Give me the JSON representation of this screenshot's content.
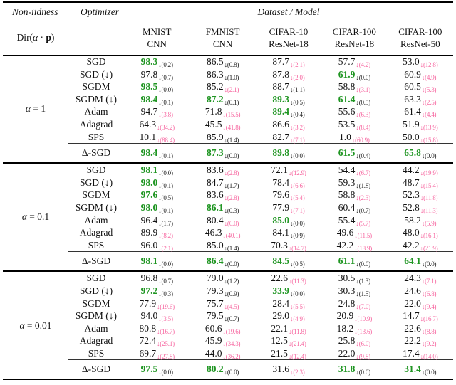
{
  "header": {
    "non_iidness": "Non-iidness",
    "optimizer": "Optimizer",
    "dataset_model": "Dataset / Model",
    "dir": {
      "prefix": "Dir(",
      "alpha": "α",
      "dot": " · ",
      "p": "p",
      "suffix": ")"
    },
    "columns": [
      {
        "line1": "MNIST",
        "line2": "CNN"
      },
      {
        "line1": "FMNIST",
        "line2": "CNN"
      },
      {
        "line1": "CIFAR-10",
        "line2": "ResNet-18"
      },
      {
        "line1": "CIFAR-100",
        "line2": "ResNet-18"
      },
      {
        "line1": "CIFAR-100",
        "line2": "ResNet-50"
      }
    ]
  },
  "legend": {
    "arrow": "↓"
  },
  "colors": {
    "green": "#1f9522",
    "pink": "#f768a1",
    "text": "#111111"
  },
  "sections": [
    {
      "alpha_sym": "α",
      "alpha_rest": " = 1",
      "rows": [
        {
          "opt": "SGD",
          "cells": [
            [
              "98.3",
              "0.2",
              1
            ],
            [
              "86.5",
              "0.8",
              0
            ],
            [
              "87.7",
              "2.1",
              0
            ],
            [
              "57.7",
              "4.2",
              0
            ],
            [
              "53.0",
              "12.8",
              0
            ]
          ]
        },
        {
          "opt": "SGD (↓)",
          "cells": [
            [
              "97.8",
              "0.7",
              0
            ],
            [
              "86.3",
              "1.0",
              0
            ],
            [
              "87.8",
              "2.0",
              0
            ],
            [
              "61.9",
              "0.0",
              1
            ],
            [
              "60.9",
              "4.9",
              0
            ]
          ]
        },
        {
          "opt": "SGDM",
          "cells": [
            [
              "98.5",
              "0.0",
              1
            ],
            [
              "85.2",
              "2.1",
              0
            ],
            [
              "88.7",
              "1.1",
              0
            ],
            [
              "58.8",
              "3.1",
              0
            ],
            [
              "60.5",
              "5.3",
              0
            ]
          ]
        },
        {
          "opt": "SGDM (↓)",
          "cells": [
            [
              "98.4",
              "0.1",
              1
            ],
            [
              "87.2",
              "0.1",
              1
            ],
            [
              "89.3",
              "0.5",
              1
            ],
            [
              "61.4",
              "0.5",
              1
            ],
            [
              "63.3",
              "2.5",
              0
            ]
          ]
        },
        {
          "opt": "Adam",
          "cells": [
            [
              "94.7",
              "3.8",
              0
            ],
            [
              "71.8",
              "15.5",
              0
            ],
            [
              "89.4",
              "0.4",
              1
            ],
            [
              "55.6",
              "6.3",
              0
            ],
            [
              "61.4",
              "4.4",
              0
            ]
          ]
        },
        {
          "opt": "Adagrad",
          "cells": [
            [
              "64.3",
              "34.2",
              0
            ],
            [
              "45.5",
              "41.8",
              0
            ],
            [
              "86.6",
              "3.2",
              0
            ],
            [
              "53.5",
              "8.4",
              0
            ],
            [
              "51.9",
              "13.9",
              0
            ]
          ]
        },
        {
          "opt": "SPS",
          "cells": [
            [
              "10.1",
              "88.4",
              0
            ],
            [
              "85.9",
              "1.4",
              0
            ],
            [
              "82.7",
              "7.1",
              0
            ],
            [
              "1.0",
              "60.9",
              0
            ],
            [
              "50.0",
              "15.8",
              0
            ]
          ]
        }
      ],
      "delta": {
        "opt": "Δ-SGD",
        "cells": [
          [
            "98.4",
            "0.1",
            1
          ],
          [
            "87.3",
            "0.0",
            1
          ],
          [
            "89.8",
            "0.0",
            1
          ],
          [
            "61.5",
            "0.4",
            1
          ],
          [
            "65.8",
            "0.0",
            1
          ]
        ]
      }
    },
    {
      "alpha_sym": "α",
      "alpha_rest": " = 0.1",
      "rows": [
        {
          "opt": "SGD",
          "cells": [
            [
              "98.1",
              "0.0",
              1
            ],
            [
              "83.6",
              "2.8",
              0
            ],
            [
              "72.1",
              "12.9",
              0
            ],
            [
              "54.4",
              "6.7",
              0
            ],
            [
              "44.2",
              "19.9",
              0
            ]
          ]
        },
        {
          "opt": "SGD (↓)",
          "cells": [
            [
              "98.0",
              "0.1",
              1
            ],
            [
              "84.7",
              "1.7",
              0
            ],
            [
              "78.4",
              "6.6",
              0
            ],
            [
              "59.3",
              "1.8",
              0
            ],
            [
              "48.7",
              "15.4",
              0
            ]
          ]
        },
        {
          "opt": "SGDM",
          "cells": [
            [
              "97.6",
              "0.5",
              1
            ],
            [
              "83.6",
              "2.8",
              0
            ],
            [
              "79.6",
              "5.4",
              0
            ],
            [
              "58.8",
              "2.3",
              0
            ],
            [
              "52.3",
              "11.8",
              0
            ]
          ]
        },
        {
          "opt": "SGDM (↓)",
          "cells": [
            [
              "98.0",
              "0.1",
              1
            ],
            [
              "86.1",
              "0.3",
              1
            ],
            [
              "77.9",
              "7.1",
              0
            ],
            [
              "60.4",
              "0.7",
              0
            ],
            [
              "52.8",
              "11.3",
              0
            ]
          ]
        },
        {
          "opt": "Adam",
          "cells": [
            [
              "96.4",
              "1.7",
              0
            ],
            [
              "80.4",
              "6.0",
              0
            ],
            [
              "85.0",
              "0.0",
              1
            ],
            [
              "55.4",
              "5.7",
              0
            ],
            [
              "58.2",
              "5.9",
              0
            ]
          ]
        },
        {
          "opt": "Adagrad",
          "cells": [
            [
              "89.9",
              "8.2",
              0
            ],
            [
              "46.3",
              "40.1",
              0
            ],
            [
              "84.1",
              "0.9",
              0
            ],
            [
              "49.6",
              "11.5",
              0
            ],
            [
              "48.0",
              "16.1",
              0
            ]
          ]
        },
        {
          "opt": "SPS",
          "cells": [
            [
              "96.0",
              "2.1",
              0
            ],
            [
              "85.0",
              "1.4",
              0
            ],
            [
              "70.3",
              "14.7",
              0
            ],
            [
              "42.2",
              "18.9",
              0
            ],
            [
              "42.2",
              "21.9",
              0
            ]
          ]
        }
      ],
      "delta": {
        "opt": "Δ-SGD",
        "cells": [
          [
            "98.1",
            "0.0",
            1
          ],
          [
            "86.4",
            "0.0",
            1
          ],
          [
            "84.5",
            "0.5",
            1
          ],
          [
            "61.1",
            "0.0",
            1
          ],
          [
            "64.1",
            "0.0",
            1
          ]
        ]
      }
    },
    {
      "alpha_sym": "α",
      "alpha_rest": " = 0.01",
      "rows": [
        {
          "opt": "SGD",
          "cells": [
            [
              "96.8",
              "0.7",
              0
            ],
            [
              "79.0",
              "1.2",
              0
            ],
            [
              "22.6",
              "11.3",
              0
            ],
            [
              "30.5",
              "1.3",
              0
            ],
            [
              "24.3",
              "7.1",
              0
            ]
          ]
        },
        {
          "opt": "SGD (↓)",
          "cells": [
            [
              "97.2",
              "0.3",
              1
            ],
            [
              "79.3",
              "0.9",
              0
            ],
            [
              "33.9",
              "0.0",
              1
            ],
            [
              "30.3",
              "1.5",
              0
            ],
            [
              "24.6",
              "6.8",
              0
            ]
          ]
        },
        {
          "opt": "SGDM",
          "cells": [
            [
              "77.9",
              "19.6",
              0
            ],
            [
              "75.7",
              "4.5",
              0
            ],
            [
              "28.4",
              "5.5",
              0
            ],
            [
              "24.8",
              "7.0",
              0
            ],
            [
              "22.0",
              "9.4",
              0
            ]
          ]
        },
        {
          "opt": "SGDM (↓)",
          "cells": [
            [
              "94.0",
              "3.5",
              0
            ],
            [
              "79.5",
              "0.7",
              0
            ],
            [
              "29.0",
              "4.9",
              0
            ],
            [
              "20.9",
              "10.9",
              0
            ],
            [
              "14.7",
              "16.7",
              0
            ]
          ]
        },
        {
          "opt": "Adam",
          "cells": [
            [
              "80.8",
              "16.7",
              0
            ],
            [
              "60.6",
              "19.6",
              0
            ],
            [
              "22.1",
              "11.8",
              0
            ],
            [
              "18.2",
              "13.6",
              0
            ],
            [
              "22.6",
              "8.8",
              0
            ]
          ]
        },
        {
          "opt": "Adagrad",
          "cells": [
            [
              "72.4",
              "25.1",
              0
            ],
            [
              "45.9",
              "34.3",
              0
            ],
            [
              "12.5",
              "21.4",
              0
            ],
            [
              "25.8",
              "6.0",
              0
            ],
            [
              "22.2",
              "9.2",
              0
            ]
          ]
        },
        {
          "opt": "SPS",
          "cells": [
            [
              "69.7",
              "27.8",
              0
            ],
            [
              "44.0",
              "36.2",
              0
            ],
            [
              "21.5",
              "12.4",
              0
            ],
            [
              "22.0",
              "9.8",
              0
            ],
            [
              "17.4",
              "14.0",
              0
            ]
          ]
        }
      ],
      "delta": {
        "opt": "Δ-SGD",
        "cells": [
          [
            "97.5",
            "0.0",
            1
          ],
          [
            "80.2",
            "0.0",
            1
          ],
          [
            "31.6",
            "2.3",
            0
          ],
          [
            "31.8",
            "0.0",
            1
          ],
          [
            "31.4",
            "0.0",
            1
          ]
        ]
      }
    }
  ]
}
